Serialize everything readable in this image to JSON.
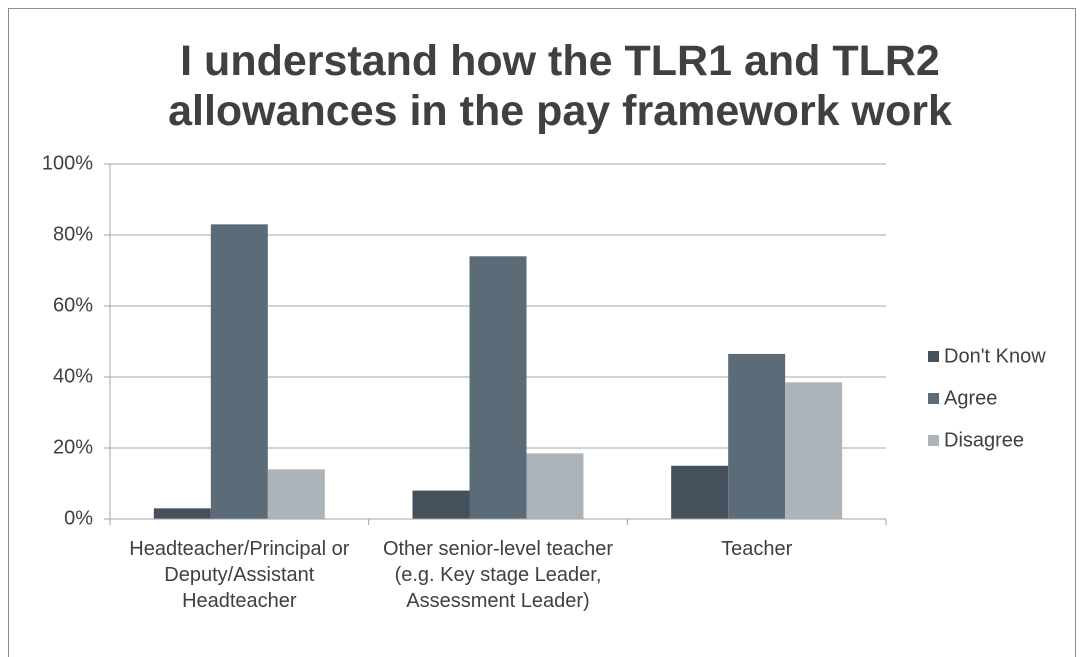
{
  "chart_data": {
    "type": "bar",
    "title": "I understand how the TLR1 and TLR2 allowances in the pay framework work",
    "categories": [
      "Headteacher/Principal or Deputy/Assistant Headteacher",
      "Other senior-level teacher (e.g. Key stage Leader, Assessment Leader)",
      "Teacher"
    ],
    "series": [
      {
        "name": "Don't Know",
        "color": "#44515c",
        "values": [
          3,
          8,
          15
        ]
      },
      {
        "name": "Agree",
        "color": "#5b6b78",
        "values": [
          83,
          74,
          46.5
        ]
      },
      {
        "name": "Disagree",
        "color": "#adb4b9",
        "values": [
          14,
          18.5,
          38.5
        ]
      }
    ],
    "ylim": [
      0,
      100
    ],
    "yticks": [
      {
        "value": 0,
        "label": "0%"
      },
      {
        "value": 20,
        "label": "20%"
      },
      {
        "value": 40,
        "label": "40%"
      },
      {
        "value": 60,
        "label": "60%"
      },
      {
        "value": 80,
        "label": "80%"
      },
      {
        "value": 100,
        "label": "100%"
      }
    ],
    "grid": true,
    "legend": "right"
  }
}
